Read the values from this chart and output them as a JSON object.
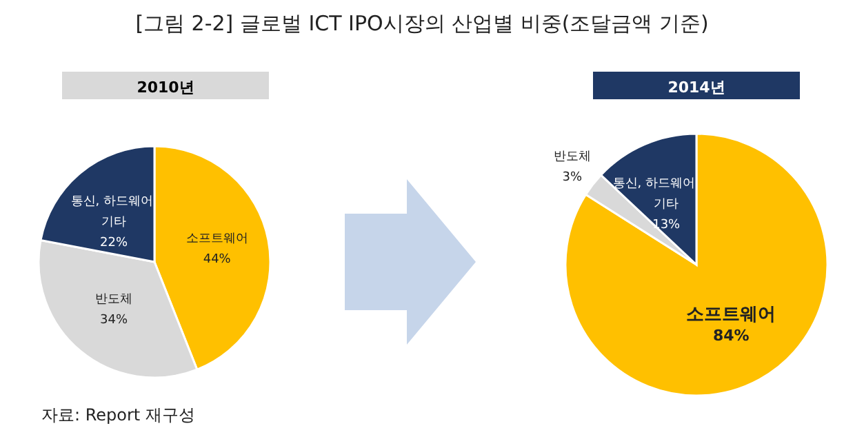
{
  "chart_data": [
    {
      "type": "pie",
      "title": "[그림 2-2] 글로벌 ICT IPO시장의 산업별 비중(조달금액 기준)",
      "subtitle": "2010년",
      "categories": [
        "소프트웨어",
        "반도체",
        "통신, 하드웨어 기타"
      ],
      "values": [
        44,
        34,
        22
      ],
      "colors": [
        "#ffc000",
        "#d9d9d9",
        "#1f3864"
      ],
      "value_labels": [
        "44%",
        "34%",
        "22%"
      ],
      "annotations": [
        "자료: Report 재구성"
      ]
    },
    {
      "type": "pie",
      "subtitle": "2014년",
      "categories": [
        "소프트웨어",
        "반도체",
        "통신, 하드웨어 기타"
      ],
      "values": [
        84,
        3,
        13
      ],
      "colors": [
        "#ffc000",
        "#d9d9d9",
        "#1f3864"
      ],
      "value_labels": [
        "84%",
        "3%",
        "13%"
      ]
    }
  ]
}
